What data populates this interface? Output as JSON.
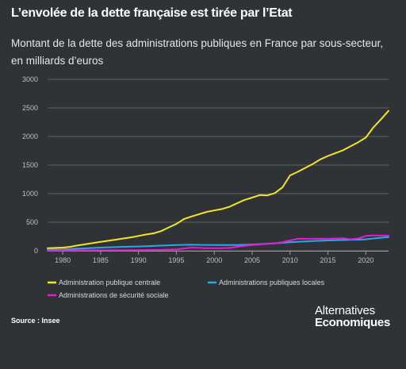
{
  "header": {
    "title": "L’envolée de la dette française est tirée par l’Etat",
    "subtitle": "Montant de la dette des administrations publiques en France par sous-secteur, en milliards d’euros"
  },
  "footer": {
    "source": "Source : Insee",
    "brand_line1": "Alternatives",
    "brand_line2": "Economiques"
  },
  "chart_data": {
    "type": "line",
    "xlim": [
      1978,
      2023
    ],
    "ylim": [
      0,
      3000
    ],
    "x_ticks": [
      1980,
      1985,
      1990,
      1995,
      2000,
      2005,
      2010,
      2015,
      2020
    ],
    "y_ticks": [
      0,
      500,
      1000,
      1500,
      2000,
      2500,
      3000
    ],
    "grid": true,
    "legend_position": "bottom",
    "series": [
      {
        "name": "Administration publique centrale",
        "color": "#f5e61a",
        "x": [
          1978,
          1979,
          1980,
          1981,
          1982,
          1983,
          1984,
          1985,
          1986,
          1987,
          1988,
          1989,
          1990,
          1991,
          1992,
          1993,
          1994,
          1995,
          1996,
          1997,
          1998,
          1999,
          2000,
          2001,
          2002,
          2003,
          2004,
          2005,
          2006,
          2007,
          2008,
          2009,
          2010,
          2011,
          2012,
          2013,
          2014,
          2015,
          2016,
          2017,
          2018,
          2019,
          2020,
          2021,
          2022,
          2023
        ],
        "values": [
          45,
          50,
          55,
          70,
          95,
          115,
          135,
          155,
          175,
          195,
          215,
          235,
          260,
          285,
          305,
          345,
          410,
          470,
          555,
          600,
          640,
          680,
          705,
          730,
          770,
          830,
          890,
          930,
          975,
          970,
          1010,
          1110,
          1320,
          1380,
          1450,
          1520,
          1600,
          1660,
          1710,
          1760,
          1830,
          1900,
          1980,
          2160,
          2300,
          2450
        ]
      },
      {
        "name": "Administrations publiques locales",
        "color": "#2aa8e6",
        "x": [
          1978,
          1980,
          1985,
          1988,
          1990,
          1993,
          1995,
          1997,
          2000,
          2003,
          2005,
          2008,
          2010,
          2013,
          2015,
          2018,
          2020,
          2021,
          2023
        ],
        "values": [
          20,
          25,
          55,
          70,
          75,
          90,
          100,
          105,
          100,
          100,
          110,
          130,
          150,
          170,
          180,
          190,
          200,
          215,
          240
        ]
      },
      {
        "name": "Administrations de sécurité sociale",
        "color": "#e61ad9",
        "x": [
          1978,
          1985,
          1990,
          1993,
          1995,
          1996,
          1997,
          1999,
          2001,
          2002,
          2003,
          2005,
          2007,
          2008,
          2009,
          2010,
          2011,
          2013,
          2015,
          2017,
          2018,
          2019,
          2020,
          2021,
          2022,
          2023
        ],
        "values": [
          5,
          8,
          10,
          15,
          25,
          40,
          55,
          45,
          45,
          50,
          70,
          100,
          120,
          130,
          150,
          180,
          210,
          210,
          210,
          220,
          200,
          215,
          260,
          270,
          265,
          265
        ]
      }
    ]
  }
}
